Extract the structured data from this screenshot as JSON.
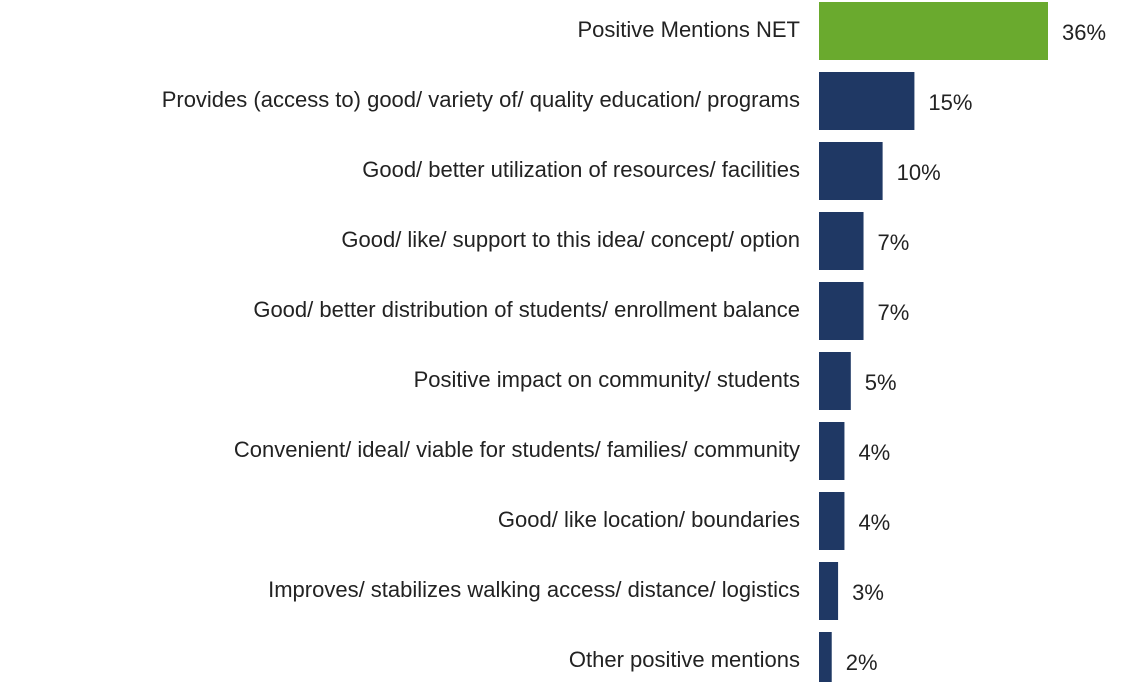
{
  "chart_data": {
    "type": "bar",
    "orientation": "horizontal",
    "categories": [
      "Positive Mentions NET",
      "Provides (access to) good/ variety of/ quality education/ programs",
      "Good/ better utilization of resources/ facilities",
      "Good/ like/ support to this idea/ concept/ option",
      "Good/ better distribution of students/ enrollment balance",
      "Positive impact on community/ students",
      "Convenient/ ideal/ viable for students/ families/ community",
      "Good/ like location/ boundaries",
      "Improves/ stabilizes walking access/ distance/ logistics",
      "Other positive mentions"
    ],
    "values": [
      36,
      15,
      10,
      7,
      7,
      5,
      4,
      4,
      3,
      2
    ],
    "value_labels": [
      "36%",
      "15%",
      "10%",
      "7%",
      "7%",
      "5%",
      "4%",
      "4%",
      "3%",
      "2%"
    ],
    "colors": [
      "#6aaa2e",
      "#1f3864",
      "#1f3864",
      "#1f3864",
      "#1f3864",
      "#1f3864",
      "#1f3864",
      "#1f3864",
      "#1f3864",
      "#1f3864"
    ]
  }
}
